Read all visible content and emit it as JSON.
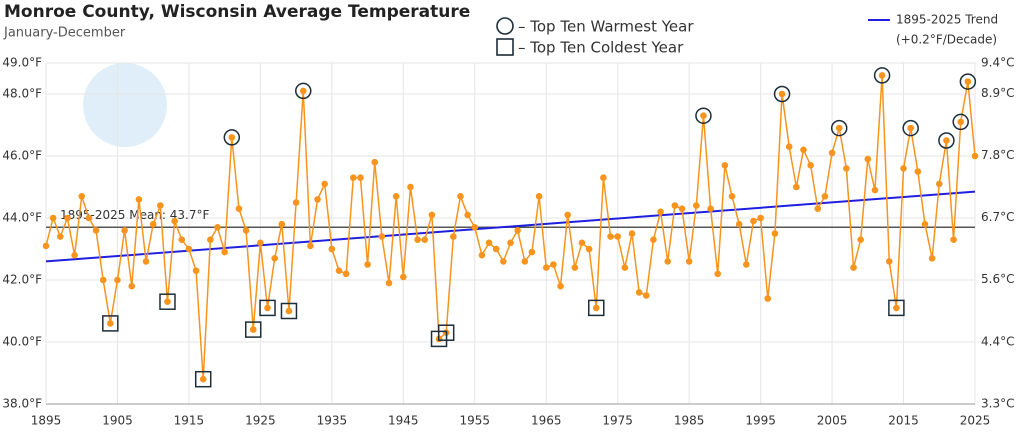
{
  "chart_data": {
    "type": "line",
    "title": "Monroe County, Wisconsin Average Temperature",
    "subtitle": "January-December",
    "x": [
      1895,
      1896,
      1897,
      1898,
      1899,
      1900,
      1901,
      1902,
      1903,
      1904,
      1905,
      1906,
      1907,
      1908,
      1909,
      1910,
      1911,
      1912,
      1913,
      1914,
      1915,
      1916,
      1917,
      1918,
      1919,
      1920,
      1921,
      1922,
      1923,
      1924,
      1925,
      1926,
      1927,
      1928,
      1929,
      1930,
      1931,
      1932,
      1933,
      1934,
      1935,
      1936,
      1937,
      1938,
      1939,
      1940,
      1941,
      1942,
      1943,
      1944,
      1945,
      1946,
      1947,
      1948,
      1949,
      1950,
      1951,
      1952,
      1953,
      1954,
      1955,
      1956,
      1957,
      1958,
      1959,
      1960,
      1961,
      1962,
      1963,
      1964,
      1965,
      1966,
      1967,
      1968,
      1969,
      1970,
      1971,
      1972,
      1973,
      1974,
      1975,
      1976,
      1977,
      1978,
      1979,
      1980,
      1981,
      1982,
      1983,
      1984,
      1985,
      1986,
      1987,
      1988,
      1989,
      1990,
      1991,
      1992,
      1993,
      1994,
      1995,
      1996,
      1997,
      1998,
      1999,
      2000,
      2001,
      2002,
      2003,
      2004,
      2005,
      2006,
      2007,
      2008,
      2009,
      2010,
      2011,
      2012,
      2013,
      2014,
      2015,
      2016,
      2017,
      2018,
      2019,
      2020,
      2021,
      2022,
      2023,
      2024,
      2025
    ],
    "series": [
      {
        "color": "#f7941d",
        "values": [
          43.1,
          44.0,
          43.4,
          44.0,
          42.8,
          44.7,
          44.0,
          43.6,
          42.0,
          40.6,
          42.0,
          43.6,
          41.8,
          44.6,
          42.6,
          43.8,
          44.4,
          41.3,
          43.9,
          43.3,
          43.0,
          42.3,
          38.8,
          43.3,
          43.7,
          42.9,
          46.6,
          44.3,
          43.6,
          40.4,
          43.2,
          41.1,
          42.7,
          43.8,
          41.0,
          44.5,
          48.1,
          43.1,
          44.6,
          45.1,
          43.0,
          42.3,
          42.2,
          45.3,
          45.3,
          42.5,
          45.8,
          43.4,
          41.9,
          44.7,
          42.1,
          45.0,
          43.3,
          43.3,
          44.1,
          40.1,
          40.3,
          43.4,
          44.7,
          44.1,
          43.7,
          42.8,
          43.2,
          43.0,
          42.6,
          43.2,
          43.6,
          42.6,
          42.9,
          44.7,
          42.4,
          42.5,
          41.8,
          44.1,
          42.4,
          43.2,
          43.0,
          41.1,
          45.3,
          43.4,
          43.4,
          42.4,
          43.5,
          41.6,
          41.5,
          43.3,
          44.2,
          42.6,
          44.4,
          44.3,
          42.6,
          44.4,
          47.3,
          44.3,
          42.2,
          45.7,
          44.7,
          43.8,
          42.5,
          43.9,
          44.0,
          41.4,
          43.5,
          48.0,
          46.3,
          45.0,
          46.2,
          45.7,
          44.3,
          44.7,
          46.1,
          46.9,
          45.6,
          42.4,
          43.3,
          45.9,
          44.9,
          48.6,
          42.6,
          41.1,
          45.6,
          46.9,
          45.5,
          43.8,
          42.7,
          45.1,
          46.5,
          43.3,
          47.1,
          48.4,
          46.0
        ]
      }
    ],
    "warmest_label": "– Top Ten Warmest Year",
    "coldest_label": "– Top Ten Coldest Year",
    "warmest_years": [
      1921,
      1931,
      1987,
      1998,
      2006,
      2012,
      2016,
      2021,
      2023,
      2024
    ],
    "coldest_years": [
      1904,
      1912,
      1917,
      1924,
      1926,
      1929,
      1950,
      1951,
      1972,
      2014
    ],
    "mean": {
      "label": "1895-2025 Mean: 43.7°F",
      "value": 43.7,
      "color": "#555555"
    },
    "trend": {
      "name": "1895-2025 Trend",
      "subtitle": "(+0.2°F/Decade)",
      "color": "#1f1fe0",
      "x": [
        1895,
        2025
      ],
      "values": [
        42.6,
        44.85
      ]
    },
    "xlim": [
      1895,
      2025
    ],
    "xticks": [
      1895,
      1905,
      1915,
      1925,
      1935,
      1945,
      1955,
      1965,
      1975,
      1985,
      1995,
      2005,
      2015,
      2025
    ],
    "ylim": [
      38,
      49
    ],
    "yticks": [
      {
        "value": 38,
        "label": "38.0°F"
      },
      {
        "value": 40,
        "label": "40.0°F"
      },
      {
        "value": 42,
        "label": "42.0°F"
      },
      {
        "value": 44,
        "label": "44.0°F"
      },
      {
        "value": 46,
        "label": "46.0°F"
      },
      {
        "value": 48,
        "label": "48.0°F"
      },
      {
        "value": 49,
        "label": "49.0°F"
      }
    ],
    "y2lim": [
      3.33,
      9.44
    ],
    "y2ticks": [
      {
        "value": 3.33,
        "label": "3.3°C"
      },
      {
        "value": 4.44,
        "label": "4.4°C"
      },
      {
        "value": 5.56,
        "label": "5.6°C"
      },
      {
        "value": 6.67,
        "label": "6.7°C"
      },
      {
        "value": 7.78,
        "label": "7.8°C"
      },
      {
        "value": 8.89,
        "label": "8.9°C"
      },
      {
        "value": 9.44,
        "label": "9.4°C"
      }
    ],
    "grid": true
  }
}
